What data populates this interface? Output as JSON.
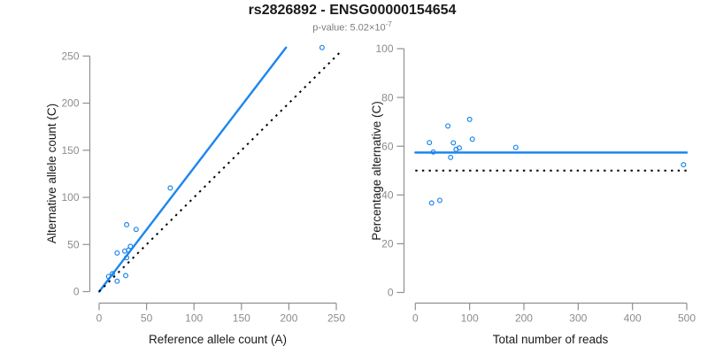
{
  "header": {
    "title": "rs2826892 - ENSG00000154654",
    "subtitle_prefix": "p-value: 5.02×10",
    "subtitle_exponent": "-7"
  },
  "colors": {
    "accent_blue": "#1C86EE",
    "axis_gray": "#909090",
    "tick_label_gray": "#8c8c8c",
    "label_black": "#1a1a1a",
    "dotted_black": "#000000"
  },
  "chart_data": [
    {
      "type": "scatter",
      "xlabel": "Reference allele count (A)",
      "ylabel": "Alternative allele count (C)",
      "xlim": [
        0,
        250
      ],
      "ylim": [
        0,
        250
      ],
      "x_ticks": [
        0,
        50,
        100,
        150,
        200,
        250
      ],
      "y_ticks": [
        0,
        50,
        100,
        150,
        200,
        250
      ],
      "grid": false,
      "legend": "none",
      "points": [
        [
          235,
          259
        ],
        [
          75,
          110
        ],
        [
          29,
          71
        ],
        [
          39,
          66
        ],
        [
          33,
          48
        ],
        [
          31,
          44
        ],
        [
          27,
          43
        ],
        [
          19,
          41
        ],
        [
          29,
          36
        ],
        [
          10,
          16
        ],
        [
          14,
          19
        ],
        [
          19,
          11
        ],
        [
          28,
          17
        ]
      ],
      "lines": [
        {
          "name": "fit-line",
          "style": "solid",
          "color": "#1C86EE",
          "x1": 0,
          "y1": 0,
          "x2": 197,
          "y2": 259
        },
        {
          "name": "identity-line",
          "style": "dotted",
          "color": "#000000",
          "x1": 0,
          "y1": 0,
          "x2": 255,
          "y2": 255
        }
      ]
    },
    {
      "type": "scatter",
      "xlabel": "Total number of reads",
      "ylabel": "Percentage alternative (C)",
      "xlim": [
        0,
        500
      ],
      "ylim": [
        0,
        100
      ],
      "x_ticks": [
        0,
        100,
        200,
        300,
        400,
        500
      ],
      "y_ticks": [
        0,
        20,
        40,
        60,
        80,
        100
      ],
      "grid": false,
      "legend": "none",
      "points": [
        [
          494,
          52.4
        ],
        [
          185,
          59.5
        ],
        [
          100,
          71
        ],
        [
          105,
          62.9
        ],
        [
          81,
          59.3
        ],
        [
          75,
          58.7
        ],
        [
          70,
          61.4
        ],
        [
          60,
          68.3
        ],
        [
          65,
          55.4
        ],
        [
          26,
          61.5
        ],
        [
          33,
          57.6
        ],
        [
          30,
          36.7
        ],
        [
          45,
          37.8
        ]
      ],
      "lines": [
        {
          "name": "mean-line",
          "style": "solid",
          "color": "#1C86EE",
          "x1": 0,
          "y1": 57.4,
          "x2": 500,
          "y2": 57.4
        },
        {
          "name": "null-line",
          "style": "dotted",
          "color": "#000000",
          "x1": 0,
          "y1": 50,
          "x2": 500,
          "y2": 50
        }
      ]
    }
  ]
}
